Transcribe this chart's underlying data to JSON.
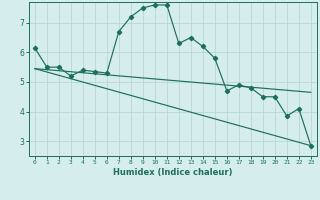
{
  "xlabel": "Humidex (Indice chaleur)",
  "xlim": [
    -0.5,
    23.5
  ],
  "ylim": [
    2.5,
    7.7
  ],
  "yticks": [
    3,
    4,
    5,
    6,
    7
  ],
  "xticks": [
    0,
    1,
    2,
    3,
    4,
    5,
    6,
    7,
    8,
    9,
    10,
    11,
    12,
    13,
    14,
    15,
    16,
    17,
    18,
    19,
    20,
    21,
    22,
    23
  ],
  "bg_color": "#d5eeed",
  "grid_color": "#b8d8d5",
  "line_color": "#1e6e5e",
  "line1_x": [
    0,
    1,
    2,
    3,
    4,
    5,
    6,
    7,
    8,
    9,
    10,
    11,
    12,
    13,
    14,
    15,
    16,
    17,
    18,
    19,
    20,
    21,
    22,
    23
  ],
  "line1_y": [
    6.15,
    5.5,
    5.5,
    5.2,
    5.4,
    5.35,
    5.3,
    6.7,
    7.2,
    7.5,
    7.6,
    7.6,
    6.3,
    6.5,
    6.2,
    5.8,
    4.7,
    4.9,
    4.8,
    4.5,
    4.5,
    3.85,
    4.1,
    2.85
  ],
  "line2_x": [
    0,
    23
  ],
  "line2_y": [
    5.45,
    4.65
  ],
  "line3_x": [
    0,
    23
  ],
  "line3_y": [
    5.45,
    2.85
  ]
}
